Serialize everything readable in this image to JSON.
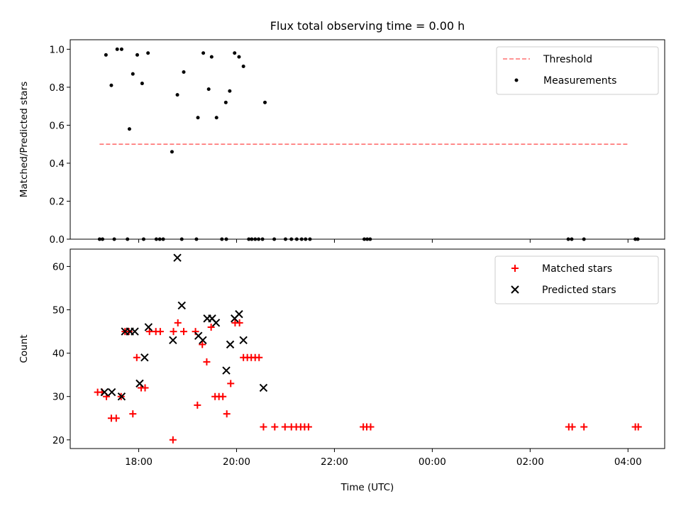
{
  "chart_data": [
    {
      "type": "scatter",
      "title": "Flux total observing time = 0.00 h",
      "xlabel": "",
      "ylabel": "Matched/Predicted stars",
      "xlim": [
        16.6,
        28.75
      ],
      "ylim": [
        0.0,
        1.05
      ],
      "yticks": [
        0.0,
        0.2,
        0.4,
        0.6,
        0.8,
        1.0
      ],
      "ytick_labels": [
        "0.0",
        "0.2",
        "0.4",
        "0.6",
        "0.8",
        "1.0"
      ],
      "legend": {
        "placement": "top-right",
        "entries": [
          "Threshold",
          "Measurements"
        ]
      },
      "threshold": {
        "name": "Threshold",
        "value": 0.5,
        "x_range": [
          17.2,
          28.0
        ],
        "color": "#ff7070"
      },
      "series": [
        {
          "name": "Measurements",
          "color": "#000000",
          "points": [
            [
              17.33,
              0.97
            ],
            [
              17.44,
              0.81
            ],
            [
              17.56,
              1.0
            ],
            [
              17.65,
              1.0
            ],
            [
              17.81,
              0.58
            ],
            [
              17.88,
              0.87
            ],
            [
              17.97,
              0.97
            ],
            [
              18.07,
              0.82
            ],
            [
              18.19,
              0.98
            ],
            [
              18.68,
              0.46
            ],
            [
              18.79,
              0.76
            ],
            [
              18.92,
              0.88
            ],
            [
              19.21,
              0.64
            ],
            [
              19.32,
              0.98
            ],
            [
              19.43,
              0.79
            ],
            [
              19.49,
              0.96
            ],
            [
              19.59,
              0.64
            ],
            [
              19.78,
              0.72
            ],
            [
              19.86,
              0.78
            ],
            [
              19.96,
              0.98
            ],
            [
              20.05,
              0.96
            ],
            [
              20.14,
              0.91
            ],
            [
              20.58,
              0.72
            ],
            [
              17.2,
              0.0
            ],
            [
              17.26,
              0.0
            ],
            [
              17.5,
              0.0
            ],
            [
              17.77,
              0.0
            ],
            [
              18.1,
              0.0
            ],
            [
              18.36,
              0.0
            ],
            [
              18.43,
              0.0
            ],
            [
              18.5,
              0.0
            ],
            [
              18.88,
              0.0
            ],
            [
              19.18,
              0.0
            ],
            [
              19.7,
              0.0
            ],
            [
              19.79,
              0.0
            ],
            [
              20.25,
              0.0
            ],
            [
              20.31,
              0.0
            ],
            [
              20.38,
              0.0
            ],
            [
              20.45,
              0.0
            ],
            [
              20.53,
              0.0
            ],
            [
              20.77,
              0.0
            ],
            [
              21.0,
              0.0
            ],
            [
              21.12,
              0.0
            ],
            [
              21.23,
              0.0
            ],
            [
              21.33,
              0.0
            ],
            [
              21.41,
              0.0
            ],
            [
              21.5,
              0.0
            ],
            [
              22.61,
              0.0
            ],
            [
              22.67,
              0.0
            ],
            [
              22.73,
              0.0
            ],
            [
              26.78,
              0.0
            ],
            [
              26.85,
              0.0
            ],
            [
              27.1,
              0.0
            ],
            [
              28.15,
              0.0
            ],
            [
              28.2,
              0.0
            ]
          ]
        }
      ]
    },
    {
      "type": "scatter",
      "title": "",
      "xlabel": "Time (UTC)",
      "ylabel": "Count",
      "xlim": [
        16.6,
        28.75
      ],
      "ylim": [
        18.0,
        64.0
      ],
      "xticks": [
        18,
        20,
        22,
        24,
        26,
        28
      ],
      "xtick_labels": [
        "18:00",
        "20:00",
        "22:00",
        "00:00",
        "02:00",
        "04:00"
      ],
      "yticks": [
        20,
        30,
        40,
        50,
        60
      ],
      "ytick_labels": [
        "20",
        "30",
        "40",
        "50",
        "60"
      ],
      "legend": {
        "placement": "top-right",
        "entries": [
          "Matched stars",
          "Predicted stars"
        ]
      },
      "series": [
        {
          "name": "Matched stars",
          "color": "#ff0000",
          "marker": "plus",
          "points": [
            [
              17.16,
              31
            ],
            [
              17.25,
              31
            ],
            [
              17.34,
              30
            ],
            [
              17.44,
              25
            ],
            [
              17.54,
              25
            ],
            [
              17.64,
              30
            ],
            [
              17.72,
              45
            ],
            [
              17.8,
              45
            ],
            [
              17.88,
              26
            ],
            [
              17.96,
              39
            ],
            [
              18.05,
              32
            ],
            [
              18.13,
              32
            ],
            [
              18.22,
              45
            ],
            [
              18.35,
              45
            ],
            [
              18.44,
              45
            ],
            [
              18.7,
              20
            ],
            [
              18.71,
              45
            ],
            [
              18.8,
              47
            ],
            [
              18.92,
              45
            ],
            [
              19.16,
              45
            ],
            [
              19.2,
              28
            ],
            [
              19.3,
              42
            ],
            [
              19.39,
              38
            ],
            [
              19.48,
              46
            ],
            [
              19.56,
              30
            ],
            [
              19.64,
              30
            ],
            [
              19.72,
              30
            ],
            [
              19.8,
              26
            ],
            [
              19.88,
              33
            ],
            [
              19.97,
              47
            ],
            [
              20.06,
              47
            ],
            [
              20.14,
              39
            ],
            [
              20.22,
              39
            ],
            [
              20.3,
              39
            ],
            [
              20.38,
              39
            ],
            [
              20.46,
              39
            ],
            [
              20.55,
              23
            ],
            [
              20.78,
              23
            ],
            [
              20.99,
              23
            ],
            [
              21.12,
              23
            ],
            [
              21.22,
              23
            ],
            [
              21.31,
              23
            ],
            [
              21.39,
              23
            ],
            [
              21.47,
              23
            ],
            [
              22.59,
              23
            ],
            [
              22.66,
              23
            ],
            [
              22.74,
              23
            ],
            [
              26.79,
              23
            ],
            [
              26.86,
              23
            ],
            [
              27.1,
              23
            ],
            [
              28.15,
              23
            ],
            [
              28.21,
              23
            ]
          ]
        },
        {
          "name": "Predicted stars",
          "color": "#000000",
          "marker": "x",
          "points": [
            [
              17.3,
              31
            ],
            [
              17.45,
              31
            ],
            [
              17.65,
              30
            ],
            [
              17.72,
              45
            ],
            [
              17.82,
              45
            ],
            [
              17.92,
              45
            ],
            [
              18.02,
              33
            ],
            [
              18.12,
              39
            ],
            [
              18.2,
              46
            ],
            [
              18.7,
              43
            ],
            [
              18.79,
              62
            ],
            [
              18.88,
              51
            ],
            [
              19.22,
              44
            ],
            [
              19.31,
              43
            ],
            [
              19.4,
              48
            ],
            [
              19.5,
              48
            ],
            [
              19.58,
              47
            ],
            [
              19.79,
              36
            ],
            [
              19.87,
              42
            ],
            [
              19.96,
              48
            ],
            [
              20.05,
              49
            ],
            [
              20.14,
              43
            ],
            [
              20.55,
              32
            ]
          ]
        }
      ]
    }
  ]
}
